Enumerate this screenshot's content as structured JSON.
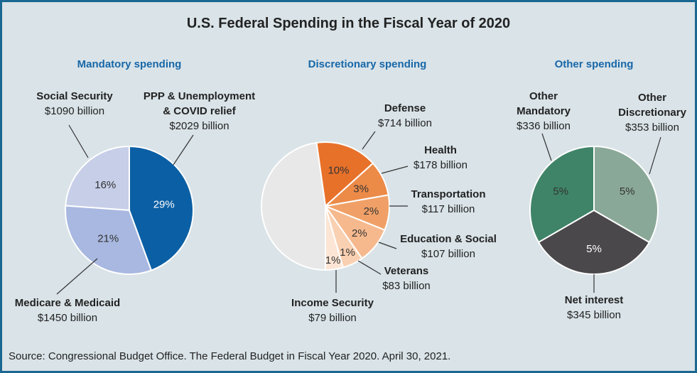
{
  "chart_data": {
    "type": "pie",
    "title": "U.S. Federal Spending in the Fiscal Year of 2020",
    "source": "Source: Congressional Budget Office. The Federal Budget in Fiscal Year 2020. April 30, 2021.",
    "charts": [
      {
        "subtitle": "Mandatory spending",
        "slices": [
          {
            "name": "PPP & Unemployment & COVID relief",
            "value_text": "$2029 billion",
            "value": 2029,
            "percent": "29%",
            "color": "#0b5fa4",
            "pct_color": "#ffffff"
          },
          {
            "name": "Medicare & Medicaid",
            "value_text": "$1450 billion",
            "value": 1450,
            "percent": "21%",
            "color": "#a8b8e0",
            "pct_color": "#333333"
          },
          {
            "name": "Social Security",
            "value_text": "$1090 billion",
            "value": 1090,
            "percent": "16%",
            "color": "#c6cee8",
            "pct_color": "#333333"
          }
        ]
      },
      {
        "subtitle": "Discretionary spending",
        "slices": [
          {
            "name": "Defense",
            "value_text": "$714 billion",
            "value": 714,
            "percent": "10%",
            "color": "#e8712a",
            "pct_color": "#333333"
          },
          {
            "name": "Health",
            "value_text": "$178 billion",
            "value": 178,
            "percent": "3%",
            "color": "#ec8a48",
            "pct_color": "#333333"
          },
          {
            "name": "Transportation",
            "value_text": "$117 billion",
            "value": 117,
            "percent": "2%",
            "color": "#f0a066",
            "pct_color": "#333333"
          },
          {
            "name": "Education & Social",
            "value_text": "$107 billion",
            "value": 107,
            "percent": "2%",
            "color": "#f6b98e",
            "pct_color": "#333333"
          },
          {
            "name": "Veterans",
            "value_text": "$83 billion",
            "value": 83,
            "percent": "1%",
            "color": "#f9d0b2",
            "pct_color": "#333333"
          },
          {
            "name": "Income Security",
            "value_text": "$79 billion",
            "value": 79,
            "percent": "1%",
            "color": "#fce5d4",
            "pct_color": "#333333"
          }
        ],
        "remainder_color": "#e8e8e8"
      },
      {
        "subtitle": "Other spending",
        "slices": [
          {
            "name": "Other Discretionary",
            "value_text": "$353 billion",
            "value": 353,
            "percent": "5%",
            "color": "#8aa898",
            "pct_color": "#333333"
          },
          {
            "name": "Net interest",
            "value_text": "$345 billion",
            "value": 345,
            "percent": "5%",
            "color": "#4a484b",
            "pct_color": "#ffffff"
          },
          {
            "name": "Other Mandatory",
            "value_text": "$336 billion",
            "value": 336,
            "percent": "5%",
            "color": "#3f8468",
            "pct_color": "#333333"
          }
        ]
      }
    ]
  }
}
